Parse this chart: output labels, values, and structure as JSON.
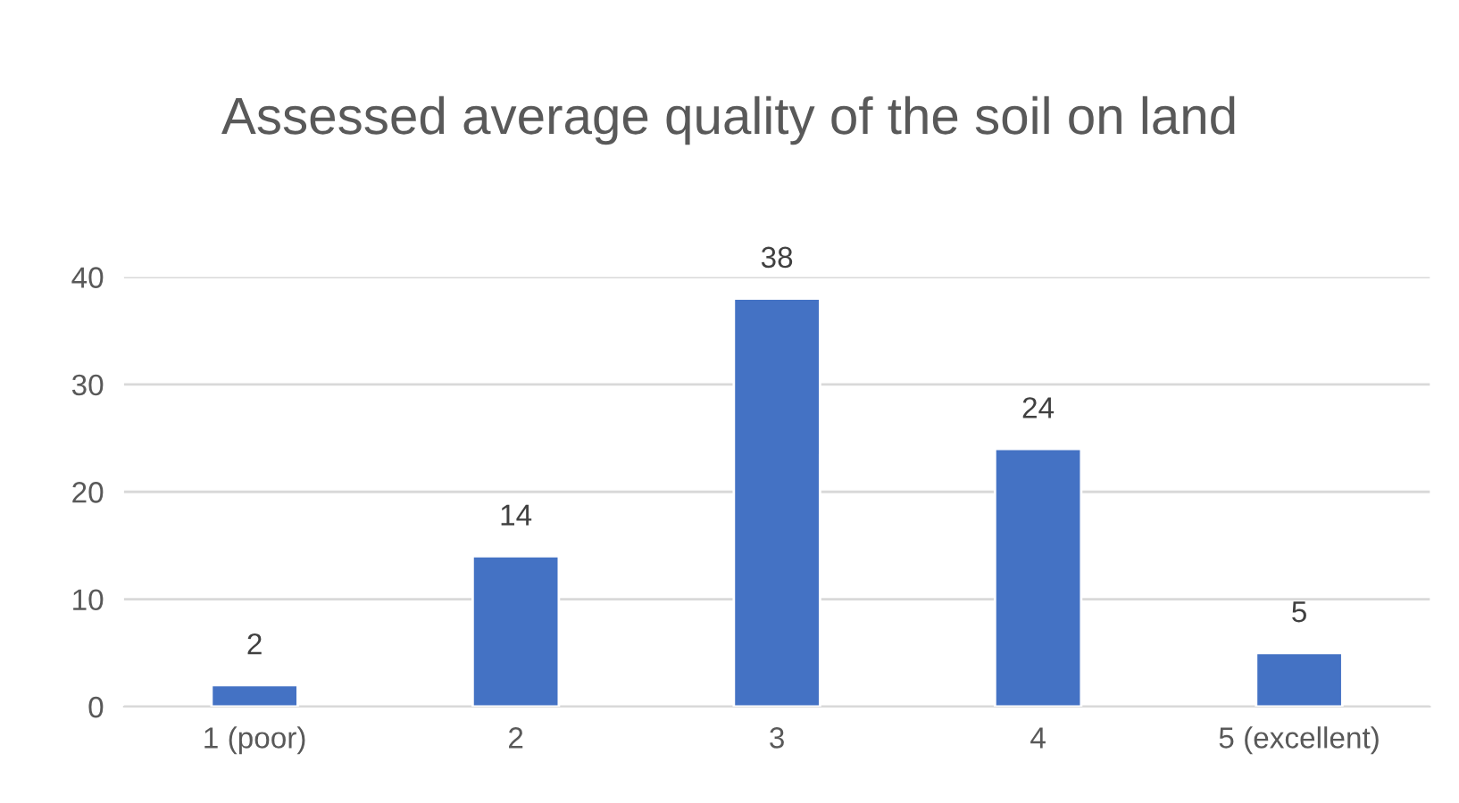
{
  "chart_data": {
    "type": "bar",
    "title": "Assessed average quality of the soil on land",
    "categories": [
      "1 (poor)",
      "2",
      "3",
      "4",
      "5 (excellent)"
    ],
    "values": [
      2,
      14,
      38,
      24,
      5
    ],
    "color": "#4472c4",
    "ylim": [
      0,
      40
    ],
    "yticks": [
      0,
      10,
      20,
      30,
      40
    ],
    "grid": "y",
    "data_labels": true
  }
}
